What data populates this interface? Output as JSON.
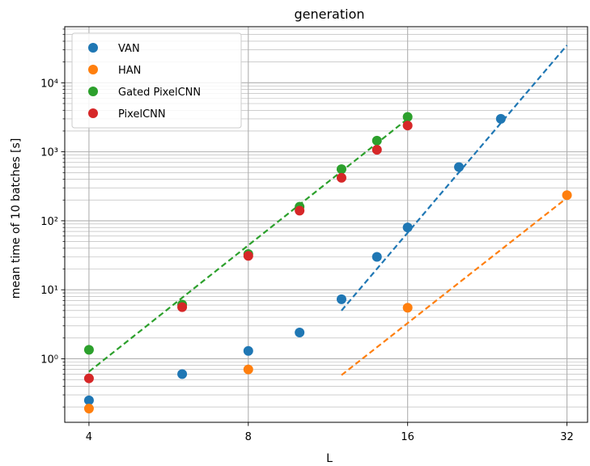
{
  "chart_data": {
    "type": "scatter",
    "title": "generation",
    "xlabel": "L",
    "ylabel": "mean time of 10 batches [s]",
    "xscale": "log2",
    "yscale": "log10",
    "xlim": [
      3.6,
      35
    ],
    "ylim": [
      0.12,
      65000
    ],
    "xticks": [
      4,
      8,
      16,
      32
    ],
    "xtick_labels": [
      "4",
      "8",
      "16",
      "32"
    ],
    "yticks": [
      1,
      10,
      100,
      1000,
      10000
    ],
    "ytick_labels": [
      "10⁰",
      "10¹",
      "10²",
      "10³",
      "10⁴"
    ],
    "grid": "major+minor",
    "legend": "top-left",
    "series": [
      {
        "name": "VAN",
        "color": "#1f77b4",
        "x": [
          4,
          6,
          8,
          10,
          12,
          14,
          16,
          20,
          24
        ],
        "y": [
          0.25,
          0.6,
          1.3,
          2.4,
          7.3,
          30,
          80,
          600,
          3000
        ]
      },
      {
        "name": "HAN",
        "color": "#ff7f0e",
        "x": [
          4,
          8,
          16,
          32
        ],
        "y": [
          0.19,
          0.7,
          5.5,
          235
        ]
      },
      {
        "name": "Gated PixelCNN",
        "color": "#2ca02c",
        "x": [
          4,
          6,
          8,
          10,
          12,
          14,
          16
        ],
        "y": [
          1.35,
          6.1,
          33,
          160,
          560,
          1450,
          3200
        ]
      },
      {
        "name": "PixelCNN",
        "color": "#d62728",
        "x": [
          4,
          6,
          8,
          10,
          12,
          14,
          16
        ],
        "y": [
          0.52,
          5.6,
          31,
          140,
          420,
          1070,
          2400
        ]
      }
    ],
    "fits": [
      {
        "color": "#1f77b4",
        "x": [
          12,
          32
        ],
        "y": [
          5,
          35000
        ]
      },
      {
        "color": "#ff7f0e",
        "x": [
          12,
          32
        ],
        "y": [
          0.58,
          215
        ]
      },
      {
        "color": "#2ca02c",
        "x": [
          4,
          16
        ],
        "y": [
          0.65,
          3000
        ]
      }
    ]
  }
}
